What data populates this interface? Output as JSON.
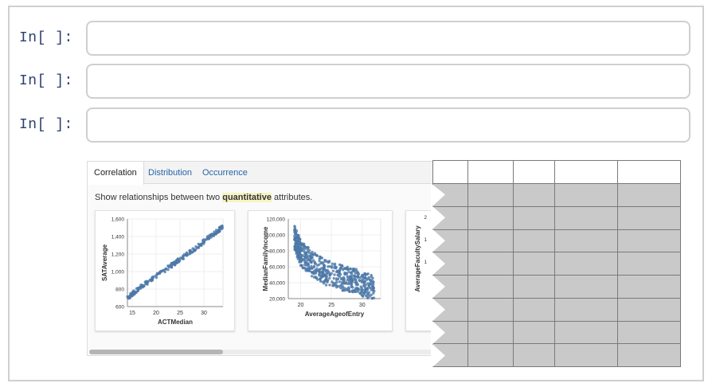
{
  "cells": [
    {
      "prompt": "In[ ]:"
    },
    {
      "prompt": "In[ ]:"
    },
    {
      "prompt": "In[ ]:"
    }
  ],
  "output": {
    "tabs": [
      {
        "label": "Correlation",
        "active": true
      },
      {
        "label": "Distribution",
        "active": false
      },
      {
        "label": "Occurrence",
        "active": false
      }
    ],
    "description_prefix": "Show relationships between two",
    "description_highlight": "quantitative",
    "description_suffix": "attributes."
  },
  "chart_data": [
    {
      "type": "scatter",
      "xlabel": "ACTMedian",
      "ylabel": "SATAverage",
      "xticks": [
        "15",
        "20",
        "25",
        "30"
      ],
      "yticks": [
        "600",
        "800",
        "1,000",
        "1,200",
        "1,400",
        "1,600"
      ],
      "xlim": [
        14,
        34
      ],
      "ylim": [
        600,
        1600
      ],
      "trend": [
        [
          14,
          700
        ],
        [
          17,
          830
        ],
        [
          20,
          950
        ],
        [
          23,
          1060
        ],
        [
          26,
          1180
        ],
        [
          29,
          1300
        ],
        [
          32,
          1430
        ],
        [
          34,
          1510
        ]
      ]
    },
    {
      "type": "scatter",
      "xlabel": "AverageAgeofEntry",
      "ylabel": "MedianFamilyIncome",
      "xticks": [
        "20",
        "25",
        "30"
      ],
      "yticks": [
        "20,000",
        "40,000",
        "60,000",
        "80,000",
        "100,000",
        "120,000"
      ],
      "xlim": [
        18,
        33
      ],
      "ylim": [
        15000,
        120000
      ],
      "trend": [
        [
          19,
          95000
        ],
        [
          20,
          75000
        ],
        [
          22,
          60000
        ],
        [
          24,
          50000
        ],
        [
          27,
          42000
        ],
        [
          30,
          35000
        ],
        [
          32,
          28000
        ]
      ]
    },
    {
      "type": "scatter",
      "ylabel": "AverageFacultySalary",
      "yticks": [
        "2",
        "1",
        "1"
      ]
    }
  ],
  "table": {
    "rows": 8,
    "cols": 5
  }
}
